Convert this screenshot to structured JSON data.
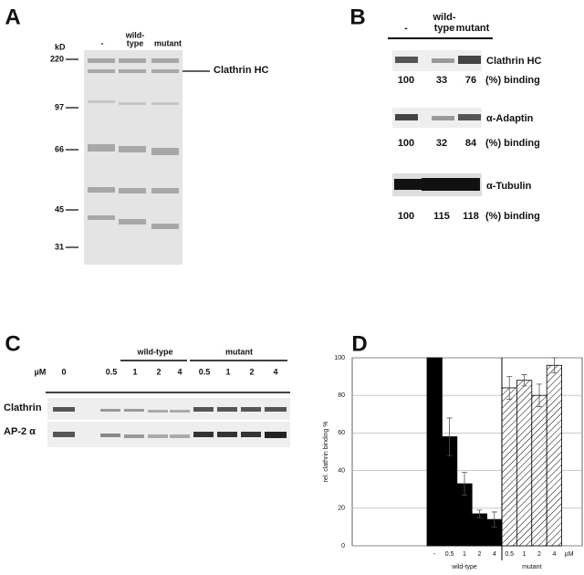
{
  "panel_a": {
    "letter": "A",
    "lanes": [
      [
        "-"
      ],
      [
        "wild-",
        "type"
      ],
      [
        "mutant"
      ]
    ],
    "unit": "kD",
    "markers": [
      "220",
      "97",
      "66",
      "45",
      "31"
    ],
    "band_label": "Clathrin HC"
  },
  "panel_b": {
    "letter": "B",
    "lanes": [
      [
        "-"
      ],
      [
        "wild-",
        "type"
      ],
      [
        "mutant"
      ]
    ],
    "rows": [
      {
        "label": "Clathrin HC",
        "values": [
          "100",
          "33",
          "76"
        ],
        "unit": "(%) binding"
      },
      {
        "label": "α-Adaptin",
        "values": [
          "100",
          "32",
          "84"
        ],
        "unit": "(%) binding"
      },
      {
        "label": "α-Tubulin",
        "values": [
          "100",
          "115",
          "118"
        ],
        "unit": "(%) binding"
      }
    ]
  },
  "panel_c": {
    "letter": "C",
    "groups": [
      "wild-type",
      "mutant"
    ],
    "unit": "µM",
    "lanes": [
      "0",
      "0.5",
      "1",
      "2",
      "4",
      "0.5",
      "1",
      "2",
      "4"
    ],
    "rows": [
      "Clathrin",
      "AP-2 α"
    ]
  },
  "chart_data": {
    "type": "bar",
    "letter": "D",
    "ylabel": "rel. clathrin binding %",
    "categories": [
      "-",
      "0.5",
      "1",
      "2",
      "4",
      "0.5",
      "1",
      "2",
      "4"
    ],
    "unit": "µM",
    "series": [
      {
        "name": "wild-type",
        "color": "#000000",
        "pattern": "solid",
        "values": [
          100,
          58,
          33,
          17,
          14,
          null,
          null,
          null,
          null
        ],
        "errors": [
          null,
          10,
          6,
          2,
          4,
          null,
          null,
          null,
          null
        ]
      },
      {
        "name": "mutant",
        "color": "#000000",
        "pattern": "hatch",
        "values": [
          null,
          null,
          null,
          null,
          null,
          84,
          88,
          80,
          96
        ],
        "errors": [
          null,
          null,
          null,
          null,
          null,
          6,
          3,
          6,
          4
        ]
      }
    ],
    "ylim": [
      0,
      100
    ],
    "yticks": [
      0,
      20,
      40,
      60,
      80,
      100
    ],
    "grid": true
  }
}
